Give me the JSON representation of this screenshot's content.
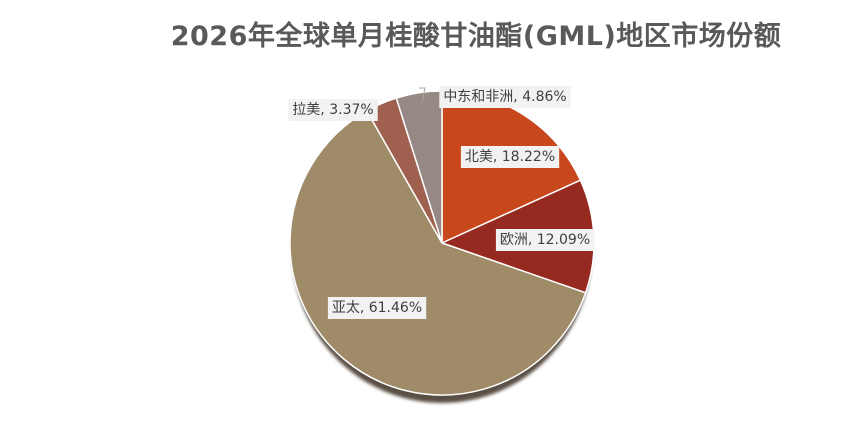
{
  "chart_data": {
    "type": "pie",
    "title": "2026年全球单月桂酸甘油酯(GML)地区市场份额",
    "categories": [
      "北美",
      "欧洲",
      "亚太",
      "拉美",
      "中东和非洲"
    ],
    "values": [
      18.22,
      12.09,
      61.46,
      3.37,
      4.86
    ],
    "unit": "%",
    "labels": [
      "北美, 18.22%",
      "欧洲, 12.09%",
      "亚太, 61.46%",
      "拉美, 3.37%",
      "中东和非洲, 4.86%"
    ],
    "colors": [
      "#C9471C",
      "#962A20",
      "#A08B69",
      "#A0604F",
      "#968884"
    ],
    "start_angle_deg": 0,
    "direction": "clockwise",
    "legend": "none"
  }
}
